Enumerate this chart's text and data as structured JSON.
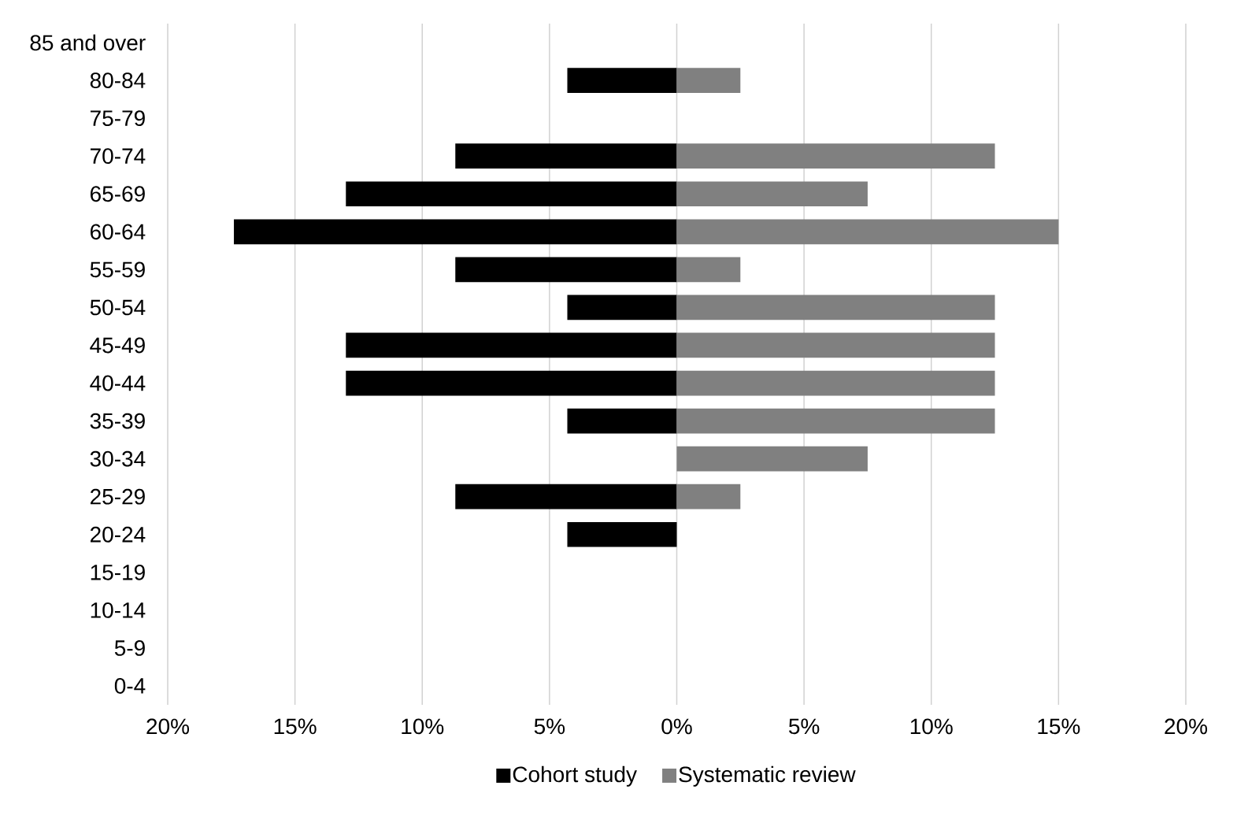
{
  "chart_data": {
    "type": "bar",
    "orientation": "horizontal",
    "categories": [
      "85 and over",
      "80-84",
      "75-79",
      "70-74",
      "65-69",
      "60-64",
      "55-59",
      "50-54",
      "45-49",
      "40-44",
      "35-39",
      "30-34",
      "25-29",
      "20-24",
      "15-19",
      "10-14",
      "5-9",
      "0-4"
    ],
    "series": [
      {
        "name": "Cohort study",
        "color": "#000000",
        "values": [
          null,
          -4.3,
          null,
          -8.7,
          -13,
          -17.4,
          -8.7,
          -4.3,
          -13,
          -13,
          -4.3,
          null,
          -8.7,
          -4.3,
          null,
          null,
          null,
          null
        ]
      },
      {
        "name": "Systematic review",
        "color": "#808080",
        "values": [
          null,
          2.5,
          null,
          12.5,
          7.5,
          15,
          2.5,
          12.5,
          12.5,
          12.5,
          12.5,
          7.5,
          2.5,
          null,
          null,
          null,
          null,
          null
        ]
      }
    ],
    "xlim": [
      -20,
      20
    ],
    "xticks": [
      {
        "value": -20,
        "label": "20%"
      },
      {
        "value": -15,
        "label": "15%"
      },
      {
        "value": -10,
        "label": "10%"
      },
      {
        "value": -5,
        "label": "5%"
      },
      {
        "value": 0,
        "label": "0%"
      },
      {
        "value": 5,
        "label": "5%"
      },
      {
        "value": 10,
        "label": "10%"
      },
      {
        "value": 15,
        "label": "15%"
      },
      {
        "value": 20,
        "label": "20%"
      }
    ],
    "grid": "x",
    "legend": "bottom",
    "stacked": true
  }
}
